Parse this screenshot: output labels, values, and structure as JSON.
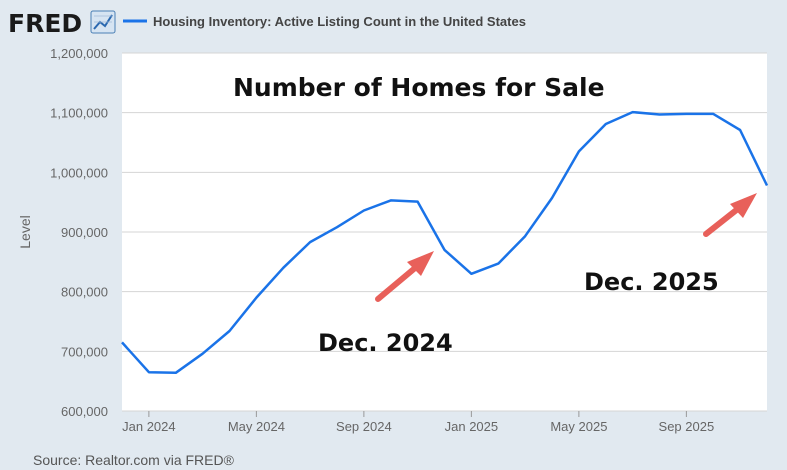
{
  "header": {
    "logo_text": "FRED",
    "legend_label": "Housing Inventory: Active Listing Count in the United States"
  },
  "colors": {
    "series": "#1a73e8",
    "arrow": "#e8605a",
    "plot_bg": "#ffffff",
    "page_bg": "#e1e9f0",
    "grid": "#d5d5d5"
  },
  "source": "Source: Realtor.com via FRED®",
  "chart_data": {
    "type": "line",
    "title": "Number of Homes for Sale",
    "ylabel": "Level",
    "xlabel": "",
    "ylim": [
      600000,
      1200000
    ],
    "yticks": [
      600000,
      700000,
      800000,
      900000,
      1000000,
      1100000,
      1200000
    ],
    "ytick_labels": [
      "600,000",
      "700,000",
      "800,000",
      "900,000",
      "1,000,000",
      "1,100,000",
      "1,200,000"
    ],
    "xlim": [
      "2023-12",
      "2025-12"
    ],
    "xticks": [
      "2024-01",
      "2024-05",
      "2024-09",
      "2025-01",
      "2025-05",
      "2025-09"
    ],
    "xtick_labels": [
      "Jan 2024",
      "May 2024",
      "Sep 2024",
      "Jan 2025",
      "May 2025",
      "Sep 2025"
    ],
    "grid": true,
    "legend_position": "top",
    "series": [
      {
        "name": "Housing Inventory: Active Listing Count in the United States",
        "x": [
          "2023-12",
          "2024-01",
          "2024-02",
          "2024-03",
          "2024-04",
          "2024-05",
          "2024-06",
          "2024-07",
          "2024-08",
          "2024-09",
          "2024-10",
          "2024-11",
          "2024-12",
          "2025-01",
          "2025-02",
          "2025-03",
          "2025-04",
          "2025-05",
          "2025-06",
          "2025-07",
          "2025-08",
          "2025-09",
          "2025-10",
          "2025-11",
          "2025-12"
        ],
        "y": [
          715000,
          665000,
          664000,
          696000,
          734000,
          790000,
          840000,
          883000,
          908000,
          936000,
          953000,
          951000,
          870000,
          830000,
          847000,
          893000,
          957000,
          1035000,
          1081000,
          1101000,
          1097000,
          1098000,
          1098000,
          1071000,
          978000
        ]
      }
    ],
    "annotations": [
      "Dec. 2024",
      "Dec. 2025"
    ]
  }
}
